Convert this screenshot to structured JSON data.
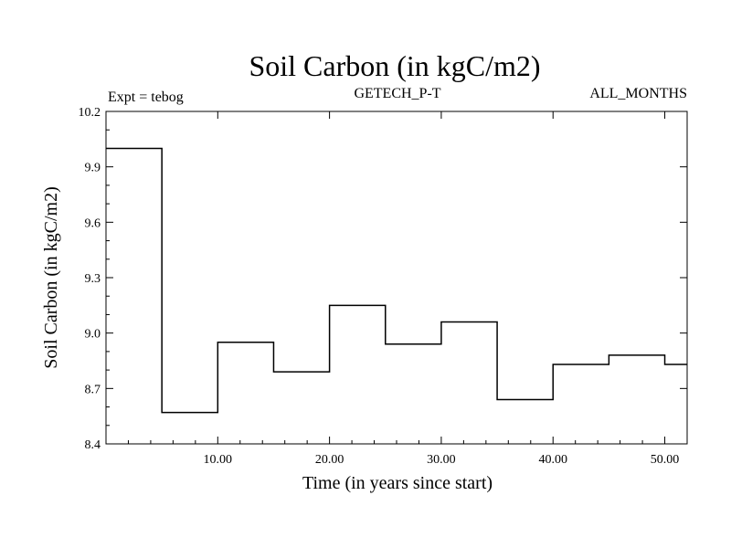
{
  "chart_data": {
    "type": "line",
    "title": "Soil Carbon (in kgC/m2)",
    "subtitle_left": "Expt = tebog",
    "subtitle_center": "GETECH_P-T",
    "subtitle_right": "ALL_MONTHS",
    "xlabel": "Time (in years since start)",
    "ylabel": "Soil Carbon (in kgC/m2)",
    "xlim": [
      0,
      52
    ],
    "ylim": [
      8.4,
      10.2
    ],
    "x_ticks": [
      10,
      20,
      30,
      40,
      50
    ],
    "x_tick_labels": [
      "10.00",
      "20.00",
      "30.00",
      "40.00",
      "50.00"
    ],
    "y_ticks": [
      8.4,
      8.7,
      9.0,
      9.3,
      9.6,
      9.9,
      10.2
    ],
    "y_tick_labels": [
      "8.4",
      "8.7",
      "9.0",
      "9.3",
      "9.6",
      "9.9",
      "10.2"
    ],
    "grid": false,
    "line_style": "step",
    "series": [
      {
        "x": [
          0,
          5,
          10,
          15,
          20,
          25,
          30,
          35,
          40,
          45,
          50,
          52
        ],
        "y": [
          10.0,
          8.57,
          8.95,
          8.79,
          9.15,
          8.94,
          9.06,
          8.64,
          8.83,
          8.88,
          8.83,
          8.83
        ]
      }
    ]
  }
}
